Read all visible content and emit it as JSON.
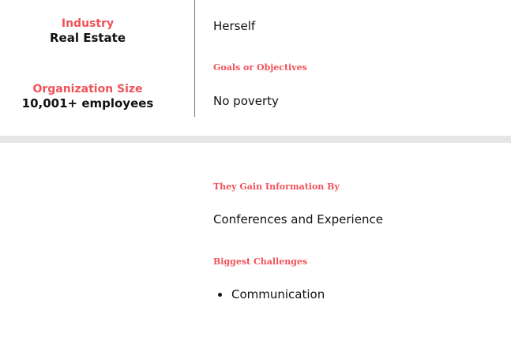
{
  "profile": {
    "industry_label": "Industry",
    "industry_value": "Real Estate",
    "org_size_label": "Organization Size",
    "org_size_value": "10,001+ employees"
  },
  "details": {
    "reports_to_value": "Herself",
    "goals_label": "Goals or Objectives",
    "goals_value": "No poverty",
    "gain_info_label": "They Gain Information By",
    "gain_info_value": "Conferences and Experience",
    "challenges_label": "Biggest Challenges",
    "challenges": [
      "Communication"
    ]
  },
  "colors": {
    "accent": "#f0525a",
    "divider": "#6b7a86",
    "band": "#e6e6e6"
  }
}
